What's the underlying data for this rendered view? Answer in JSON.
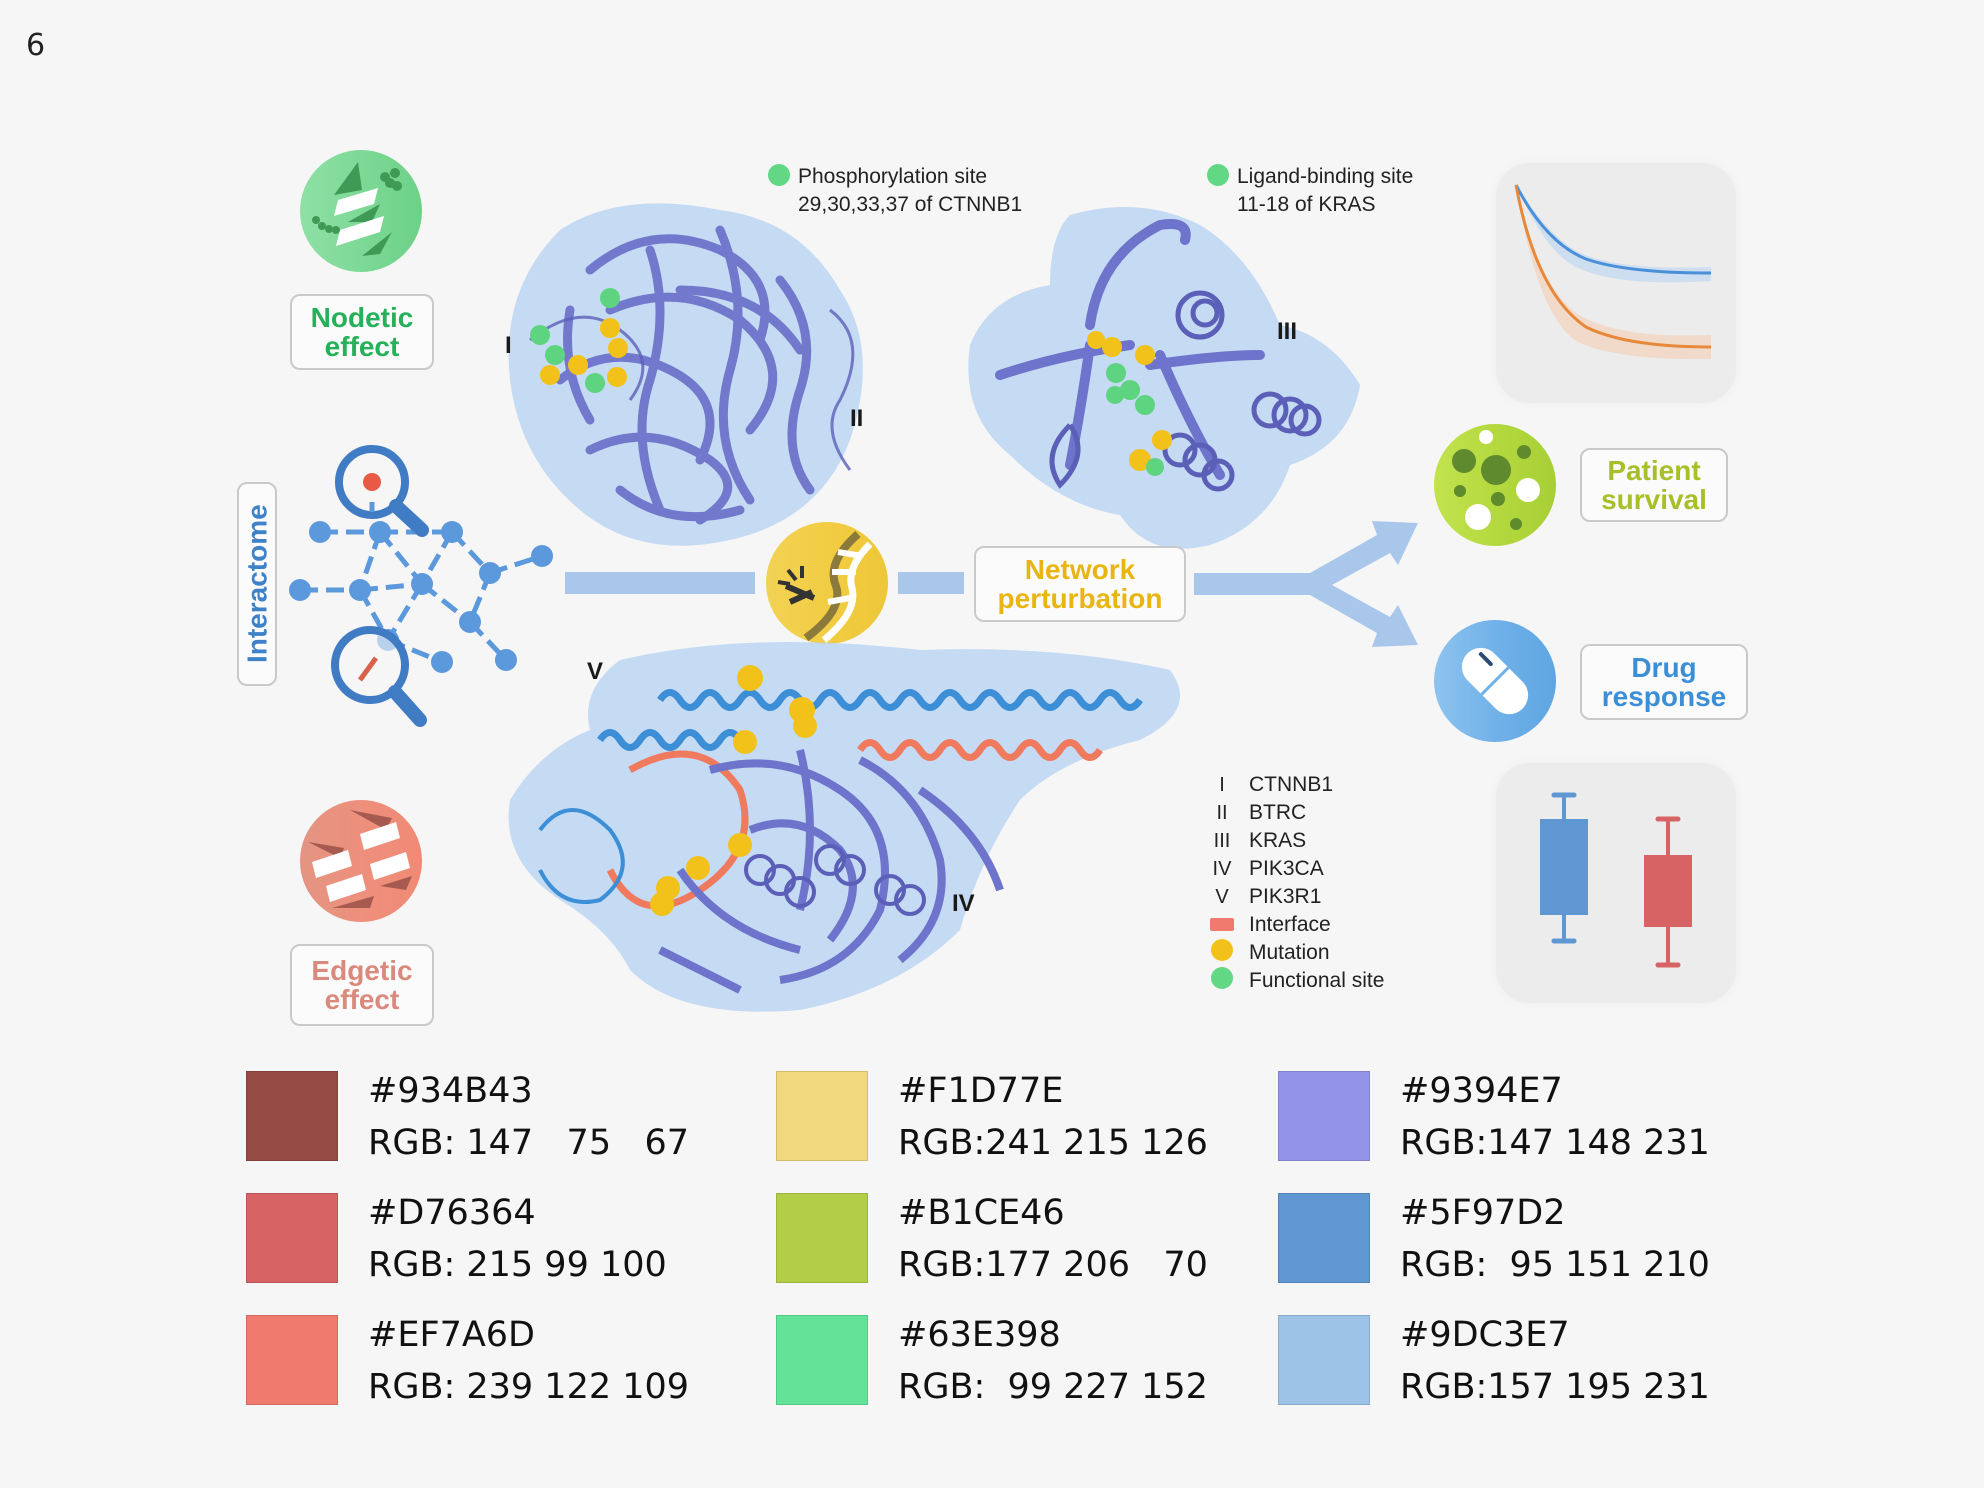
{
  "page_number": "6",
  "left_column": {
    "nodetic_label": [
      "Nodetic",
      "effect"
    ],
    "interactome_label": "Interactome",
    "edgetic_label": [
      "Edgetic",
      "effect"
    ],
    "colors": {
      "nodetic": "#26b05a",
      "edgetic": "#d98a7d",
      "interactome": "#3f82c8"
    }
  },
  "site_annotations": [
    {
      "title": "Phosphorylation site",
      "detail": "29,30,33,37 of CTNNB1"
    },
    {
      "title": "Ligand-binding site",
      "detail": "11-18 of KRAS"
    }
  ],
  "structure_labels": {
    "I": "I",
    "II": "II",
    "III": "III",
    "IV": "IV",
    "V": "V"
  },
  "center": {
    "network_perturbation_label": [
      "Network",
      "perturbation"
    ],
    "color": "#e8b512"
  },
  "outcomes": {
    "patient_survival_label": [
      "Patient",
      "survival"
    ],
    "drug_response_label": [
      "Drug",
      "response"
    ],
    "patient_color": "#a8bf2a",
    "drug_color": "#3b8fd6"
  },
  "legend": [
    {
      "key": "I",
      "label": "CTNNB1"
    },
    {
      "key": "II",
      "label": "BTRC"
    },
    {
      "key": "III",
      "label": "KRAS"
    },
    {
      "key": "IV",
      "label": "PIK3CA"
    },
    {
      "key": "V",
      "label": "PIK3R1"
    },
    {
      "key": "rect",
      "label": "Interface",
      "color": "#ef7a6d"
    },
    {
      "key": "dot",
      "label": "Mutation",
      "color": "#f2c21b"
    },
    {
      "key": "dot",
      "label": "Functional site",
      "color": "#63d884"
    }
  ],
  "survival_curves": {
    "series": [
      {
        "name": "blue",
        "color": "#4a90d9"
      },
      {
        "name": "orange",
        "color": "#e8883a"
      }
    ]
  },
  "boxplots": [
    {
      "name": "blue",
      "color": "#5f97d2"
    },
    {
      "name": "red",
      "color": "#d76364"
    }
  ],
  "palette": [
    {
      "hex": "#934B43",
      "rgb": "RGB: 147   75   67"
    },
    {
      "hex": "#D76364",
      "rgb": "RGB: 215 99 100"
    },
    {
      "hex": "#EF7A6D",
      "rgb": "RGB: 239 122 109"
    },
    {
      "hex": "#F1D77E",
      "rgb": "RGB:241 215 126"
    },
    {
      "hex": "#B1CE46",
      "rgb": "RGB:177 206   70"
    },
    {
      "hex": "#63E398",
      "rgb": "RGB:  99 227 152"
    },
    {
      "hex": "#9394E7",
      "rgb": "RGB:147 148 231"
    },
    {
      "hex": "#5F97D2",
      "rgb": "RGB:  95 151 210"
    },
    {
      "hex": "#9DC3E7",
      "rgb": "RGB:157 195 231"
    }
  ]
}
